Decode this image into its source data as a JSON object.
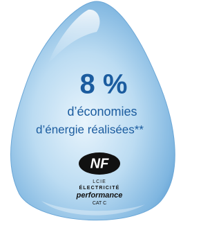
{
  "headline": {
    "figure": "8 %",
    "line1": "d’économies",
    "line2": "d’énergie réalisées**"
  },
  "certification": {
    "logo": "NF",
    "lines": [
      "LCIE",
      "ÉLECTRICITÉ",
      "performance",
      "CAT C"
    ]
  }
}
